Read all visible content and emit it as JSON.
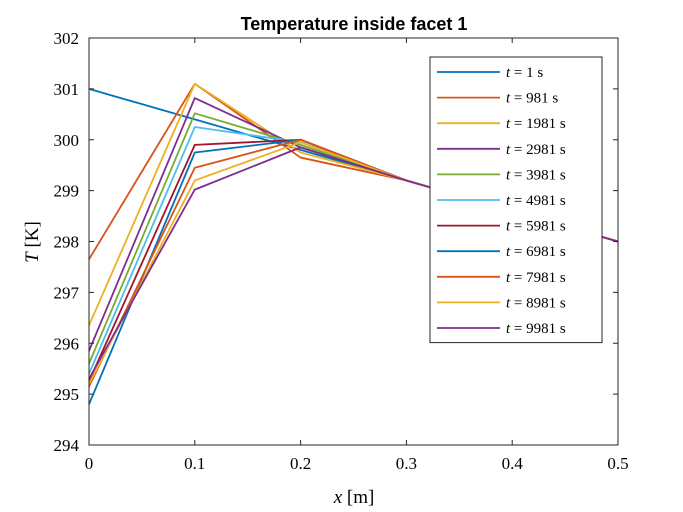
{
  "chart_data": {
    "type": "line",
    "title": "Temperature inside facet 1",
    "xlabel": "x [m]",
    "ylabel": "T [K]",
    "xlim": [
      0,
      0.5
    ],
    "ylim": [
      294,
      302
    ],
    "xticks": [
      0,
      0.1,
      0.2,
      0.3,
      0.4,
      0.5
    ],
    "yticks": [
      294,
      295,
      296,
      297,
      298,
      299,
      300,
      301,
      302
    ],
    "x": [
      0,
      0.1,
      0.2,
      0.3,
      0.4,
      0.5
    ],
    "legend_position": "top-right",
    "series": [
      {
        "name": "t = 1 s",
        "color": "#0072BD",
        "values": [
          301.0,
          300.4,
          299.8,
          299.2,
          298.6,
          298.0
        ]
      },
      {
        "name": "t = 981 s",
        "color": "#D95319",
        "values": [
          297.65,
          301.1,
          299.65,
          299.2,
          298.6,
          298.0
        ]
      },
      {
        "name": "t = 1981 s",
        "color": "#EDB120",
        "values": [
          296.35,
          301.1,
          299.75,
          299.2,
          298.6,
          298.0
        ]
      },
      {
        "name": "t = 2981 s",
        "color": "#7E2F8E",
        "values": [
          295.85,
          300.82,
          299.85,
          299.2,
          298.6,
          298.0
        ]
      },
      {
        "name": "t = 3981 s",
        "color": "#77AC30",
        "values": [
          295.6,
          300.52,
          299.9,
          299.2,
          298.6,
          298.0
        ]
      },
      {
        "name": "t = 4981 s",
        "color": "#4DBEEE",
        "values": [
          295.4,
          300.25,
          299.95,
          299.2,
          298.6,
          298.0
        ]
      },
      {
        "name": "t = 5981 s",
        "color": "#A2142F",
        "values": [
          295.25,
          299.9,
          300.0,
          299.2,
          298.6,
          298.0
        ]
      },
      {
        "name": "t = 6981 s",
        "color": "#0072BD",
        "values": [
          294.8,
          299.75,
          300.0,
          299.2,
          298.6,
          298.0
        ]
      },
      {
        "name": "t = 7981 s",
        "color": "#D95319",
        "values": [
          295.15,
          299.45,
          300.0,
          299.2,
          298.6,
          298.0
        ]
      },
      {
        "name": "t = 8981 s",
        "color": "#EDB120",
        "values": [
          295.2,
          299.2,
          299.95,
          299.2,
          298.6,
          298.0
        ]
      },
      {
        "name": "t = 9981 s",
        "color": "#7E2F8E",
        "values": [
          295.3,
          299.02,
          299.85,
          299.2,
          298.6,
          298.0
        ]
      }
    ]
  }
}
